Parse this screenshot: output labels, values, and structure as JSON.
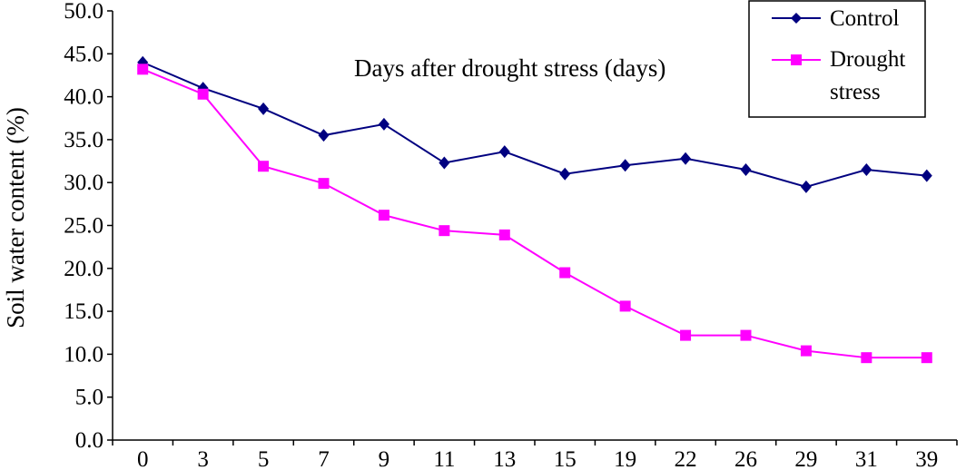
{
  "chart_data": {
    "type": "line",
    "categories": [
      "0",
      "3",
      "5",
      "7",
      "9",
      "11",
      "13",
      "15",
      "19",
      "22",
      "26",
      "29",
      "31",
      "39"
    ],
    "series": [
      {
        "name": "Control",
        "color": "#000080",
        "marker": "diamond",
        "values": [
          44.0,
          41.0,
          38.6,
          35.5,
          36.8,
          32.3,
          33.6,
          31.0,
          32.0,
          32.8,
          31.5,
          29.5,
          31.5,
          30.8
        ]
      },
      {
        "name": "Drought stress",
        "legend_lines": [
          "Drought",
          "stress"
        ],
        "color": "#FF00FF",
        "marker": "square",
        "values": [
          43.2,
          40.3,
          31.9,
          29.9,
          26.2,
          24.4,
          23.9,
          19.5,
          15.6,
          12.2,
          12.2,
          10.4,
          9.6,
          9.6
        ]
      }
    ],
    "title": "",
    "xlabel": "Days after drought stress (days)",
    "ylabel": "Soil water content (%)",
    "ylim": [
      0,
      50
    ],
    "yticks": [
      "0.0",
      "5.0",
      "10.0",
      "15.0",
      "20.0",
      "25.0",
      "30.0",
      "35.0",
      "40.0",
      "45.0",
      "50.0"
    ],
    "grid": false,
    "legend_position": "top-right"
  }
}
